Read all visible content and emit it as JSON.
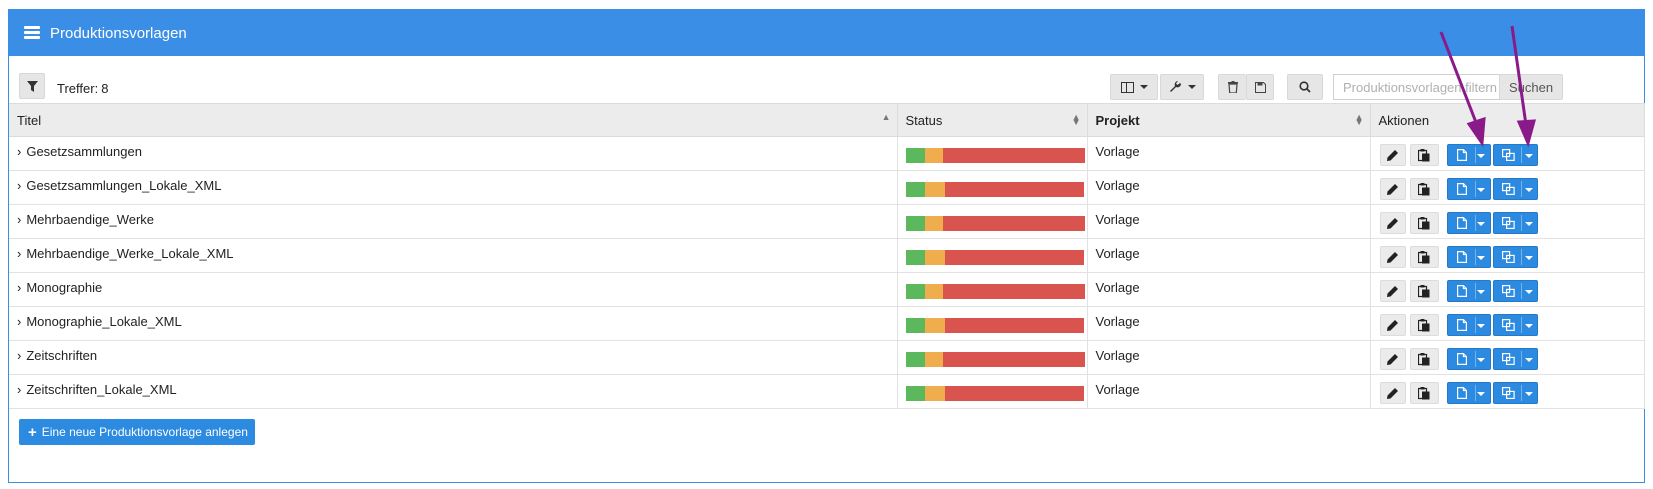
{
  "panel": {
    "title": "Produktionsvorlagen",
    "menu_icon": "server-icon"
  },
  "toolbar": {
    "filter_icon": "filter-icon",
    "hits_label": "Treffer:",
    "hits_count": "8",
    "column_chooser_icon": "columns-icon",
    "tools_icon": "wrench-icon",
    "delete_icon": "trash-icon",
    "save_icon": "save-icon",
    "search_icon": "search-icon",
    "search_placeholder": "Produktionsvorlagen filtern",
    "search_button": "Suchen"
  },
  "table": {
    "columns": [
      "Titel",
      "Status",
      "Projekt",
      "Aktionen"
    ],
    "rows": [
      {
        "title": "Gesetzsammlungen",
        "project": "Vorlage",
        "status": {
          "green": 0.11,
          "orange": 0.1,
          "red": 0.79
        }
      },
      {
        "title": "Gesetzsammlungen_Lokale_XML",
        "project": "Vorlage",
        "status": {
          "green": 0.11,
          "orange": 0.11,
          "red": 0.78
        }
      },
      {
        "title": "Mehrbaendige_Werke",
        "project": "Vorlage",
        "status": {
          "green": 0.11,
          "orange": 0.1,
          "red": 0.79
        }
      },
      {
        "title": "Mehrbaendige_Werke_Lokale_XML",
        "project": "Vorlage",
        "status": {
          "green": 0.11,
          "orange": 0.11,
          "red": 0.78
        }
      },
      {
        "title": "Monographie",
        "project": "Vorlage",
        "status": {
          "green": 0.11,
          "orange": 0.1,
          "red": 0.79
        }
      },
      {
        "title": "Monographie_Lokale_XML",
        "project": "Vorlage",
        "status": {
          "green": 0.11,
          "orange": 0.11,
          "red": 0.78
        }
      },
      {
        "title": "Zeitschriften",
        "project": "Vorlage",
        "status": {
          "green": 0.11,
          "orange": 0.1,
          "red": 0.79
        }
      },
      {
        "title": "Zeitschriften_Lokale_XML",
        "project": "Vorlage",
        "status": {
          "green": 0.11,
          "orange": 0.11,
          "red": 0.78
        }
      }
    ],
    "action_icons": [
      "pencil-icon",
      "clipboard-icon",
      "file-icon",
      "copy-icon"
    ]
  },
  "footer": {
    "create_button": "Eine neue Produktionsvorlage anlegen"
  },
  "colors": {
    "header": "#3a8ee6",
    "button_blue": "#2c8ae0",
    "status_green": "#5cb85c",
    "status_orange": "#f0ad4e",
    "status_red": "#d9534f",
    "annotation_arrow": "#8a1a8a"
  }
}
